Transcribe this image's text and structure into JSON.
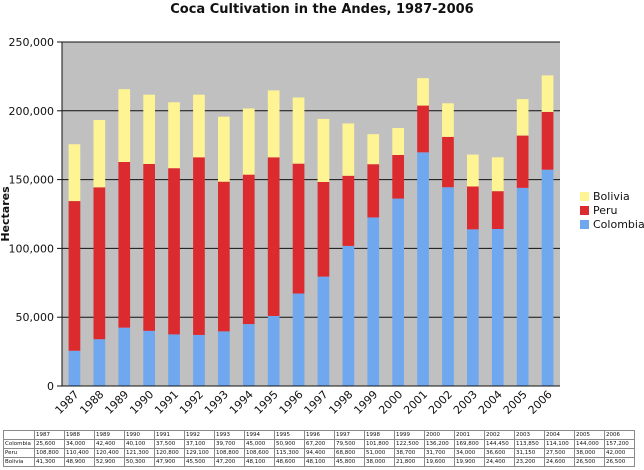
{
  "chart_data": {
    "type": "bar",
    "stacked": true,
    "title": "Coca Cultivation in the Andes, 1987-2006",
    "ylabel": "Hectares",
    "xlabel": "",
    "ylim": [
      0,
      250000
    ],
    "yticks": [
      "0",
      "50,000",
      "100,000",
      "150,000",
      "200,000",
      "250,000"
    ],
    "grid": "horizontal",
    "legend_position": "right",
    "categories": [
      "1987",
      "1988",
      "1989",
      "1990",
      "1991",
      "1992",
      "1993",
      "1994",
      "1995",
      "1996",
      "1997",
      "1998",
      "1999",
      "2000",
      "2001",
      "2002",
      "2003",
      "2004",
      "2005",
      "2006"
    ],
    "series": [
      {
        "name": "Colombia",
        "color": "#6fa8ef",
        "values": [
          25600,
          34000,
          42400,
          40100,
          37500,
          37100,
          39700,
          45000,
          50900,
          67200,
          79500,
          101800,
          122500,
          136200,
          169800,
          144450,
          113850,
          114100,
          144000,
          157200
        ]
      },
      {
        "name": "Peru",
        "color": "#dc2b2f",
        "values": [
          108800,
          110400,
          120400,
          121300,
          120800,
          129100,
          108800,
          108600,
          115300,
          94400,
          68800,
          51000,
          38700,
          31700,
          34000,
          36600,
          31150,
          27500,
          38000,
          42000
        ]
      },
      {
        "name": "Bolivia",
        "color": "#fff494",
        "values": [
          41300,
          48900,
          52900,
          50300,
          47900,
          45500,
          47200,
          48100,
          48600,
          48100,
          45800,
          38000,
          21800,
          19600,
          19900,
          24400,
          23200,
          24600,
          26500,
          26500
        ]
      }
    ],
    "legend_order": [
      "Bolivia",
      "Peru",
      "Colombia"
    ],
    "table": {
      "header": [
        "1987",
        "1988",
        "1989",
        "1990",
        "1991",
        "1992",
        "1993",
        "1994",
        "1995",
        "1996",
        "1997",
        "1998",
        "1999",
        "2000",
        "2001",
        "2002",
        "2003",
        "2004",
        "2005",
        "2006"
      ],
      "rows": [
        {
          "label": "Colombia",
          "cells": [
            "25,600",
            "34,000",
            "42,400",
            "40,100",
            "37,500",
            "37,100",
            "39,700",
            "45,000",
            "50,900",
            "67,200",
            "79,500",
            "101,800",
            "122,500",
            "136,200",
            "169,800",
            "144,450",
            "113,850",
            "114,100",
            "144,000",
            "157,200"
          ]
        },
        {
          "label": "Peru",
          "cells": [
            "108,800",
            "110,400",
            "120,400",
            "121,300",
            "120,800",
            "129,100",
            "108,800",
            "108,600",
            "115,300",
            "94,400",
            "68,800",
            "51,000",
            "38,700",
            "31,700",
            "34,000",
            "36,600",
            "31,150",
            "27,500",
            "38,000",
            "42,000"
          ]
        },
        {
          "label": "Bolivia",
          "cells": [
            "41,300",
            "48,900",
            "52,900",
            "50,300",
            "47,900",
            "45,500",
            "47,200",
            "48,100",
            "48,600",
            "48,100",
            "45,800",
            "38,000",
            "21,800",
            "19,600",
            "19,900",
            "24,400",
            "23,200",
            "24,600",
            "26,500",
            "26,500"
          ]
        }
      ]
    }
  }
}
